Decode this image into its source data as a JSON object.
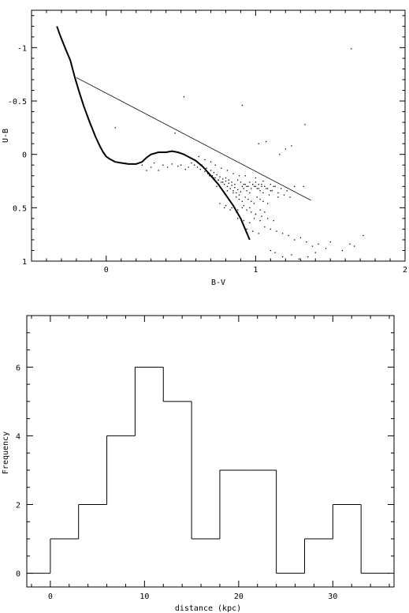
{
  "chart_data": [
    {
      "type": "scatter",
      "title": "",
      "xlabel": "B-V",
      "ylabel": "U-B",
      "xlim": [
        -0.5,
        2.0
      ],
      "ylim": [
        1.0,
        -1.35
      ],
      "y_inverted": true,
      "grid": false,
      "xticks": [
        0,
        1,
        2
      ],
      "xtick_labels": [
        "0",
        "1",
        "2"
      ],
      "yticks": [
        -1,
        -0.5,
        0,
        0.5,
        1
      ],
      "ytick_labels": [
        "-1",
        "-0.5",
        "0",
        "0.5",
        "1"
      ],
      "series": [
        {
          "kind": "line",
          "style": "thick",
          "x": [
            -0.33,
            -0.31,
            -0.27,
            -0.24,
            -0.21,
            -0.18,
            -0.15,
            -0.11,
            -0.07,
            -0.04,
            -0.02,
            0.0,
            0.02,
            0.06,
            0.1,
            0.15,
            0.2,
            0.24,
            0.27,
            0.3,
            0.35,
            0.4,
            0.44,
            0.48,
            0.52,
            0.56,
            0.6,
            0.65,
            0.7,
            0.75,
            0.8,
            0.85,
            0.9,
            0.93,
            0.96
          ],
          "y": [
            -1.2,
            -1.12,
            -0.98,
            -0.88,
            -0.72,
            -0.58,
            -0.45,
            -0.3,
            -0.16,
            -0.07,
            -0.02,
            0.02,
            0.04,
            0.07,
            0.08,
            0.09,
            0.09,
            0.07,
            0.03,
            0.0,
            -0.02,
            -0.02,
            -0.03,
            -0.02,
            0.0,
            0.03,
            0.06,
            0.12,
            0.2,
            0.28,
            0.38,
            0.48,
            0.6,
            0.7,
            0.8
          ]
        },
        {
          "kind": "line",
          "style": "thin",
          "x": [
            -0.2,
            1.37
          ],
          "y": [
            -0.72,
            0.43
          ]
        },
        {
          "kind": "points",
          "x": [
            1.64,
            0.52,
            0.91,
            1.33,
            0.06,
            0.46,
            1.02,
            1.07,
            1.2,
            1.24,
            1.16,
            1.32,
            0.27,
            0.32,
            0.3,
            0.24,
            0.35,
            0.38,
            0.41,
            0.44,
            0.48,
            0.5,
            0.53,
            0.55,
            0.57,
            0.59,
            0.61,
            0.63,
            0.64,
            0.66,
            0.67,
            0.68,
            0.7,
            0.71,
            0.72,
            0.73,
            0.74,
            0.75,
            0.76,
            0.77,
            0.78,
            0.79,
            0.8,
            0.81,
            0.82,
            0.83,
            0.84,
            0.85,
            0.86,
            0.87,
            0.88,
            0.89,
            0.9,
            0.91,
            0.92,
            0.93,
            0.94,
            0.95,
            0.96,
            0.97,
            0.98,
            0.99,
            1.0,
            1.01,
            1.02,
            1.03,
            1.04,
            1.05,
            1.07,
            1.09,
            1.11,
            1.13,
            1.15,
            1.17,
            1.19,
            1.21,
            1.23,
            1.26,
            0.69,
            0.72,
            0.75,
            0.78,
            0.8,
            0.82,
            0.84,
            0.86,
            0.88,
            0.9,
            0.92,
            0.94,
            0.96,
            0.98,
            1.0,
            1.02,
            1.04,
            1.06,
            1.08,
            1.1,
            1.12,
            0.74,
            0.77,
            0.81,
            0.85,
            0.87,
            0.89,
            0.91,
            0.93,
            0.95,
            0.97,
            0.99,
            1.01,
            1.03,
            1.05,
            1.08,
            0.79,
            0.83,
            0.87,
            0.91,
            0.94,
            0.97,
            1.0,
            1.03,
            1.06,
            0.88,
            0.92,
            0.96,
            0.99,
            1.03,
            0.94,
            0.98,
            1.02,
            1.06,
            1.1,
            1.14,
            1.18,
            1.22,
            1.26,
            1.3,
            1.34,
            1.38,
            1.42,
            1.47,
            1.5,
            1.58,
            1.63,
            1.66,
            1.72,
            1.1,
            1.13,
            1.18,
            1.24,
            1.29,
            1.35,
            1.4,
            0.62,
            0.66,
            0.7,
            0.73,
            0.77,
            0.81,
            0.85,
            0.89,
            0.93,
            1.0,
            1.05,
            1.1,
            1.15,
            0.76,
            0.8,
            0.84,
            0.88,
            0.92,
            0.96,
            1.0,
            1.04,
            1.08,
            1.12
          ],
          "y": [
            -0.99,
            -0.54,
            -0.46,
            -0.28,
            -0.25,
            -0.2,
            -0.1,
            -0.12,
            -0.05,
            -0.08,
            0.0,
            0.3,
            0.15,
            0.08,
            0.12,
            0.1,
            0.15,
            0.1,
            0.12,
            0.09,
            0.11,
            0.1,
            0.14,
            0.12,
            0.08,
            0.1,
            0.12,
            0.14,
            0.1,
            0.16,
            0.13,
            0.18,
            0.15,
            0.2,
            0.17,
            0.22,
            0.19,
            0.24,
            0.21,
            0.26,
            0.23,
            0.28,
            0.25,
            0.3,
            0.27,
            0.32,
            0.29,
            0.34,
            0.31,
            0.36,
            0.33,
            0.38,
            0.35,
            0.3,
            0.32,
            0.28,
            0.34,
            0.3,
            0.36,
            0.32,
            0.28,
            0.3,
            0.26,
            0.32,
            0.28,
            0.34,
            0.3,
            0.36,
            0.32,
            0.38,
            0.34,
            0.3,
            0.36,
            0.32,
            0.38,
            0.34,
            0.4,
            0.3,
            0.2,
            0.22,
            0.24,
            0.26,
            0.22,
            0.24,
            0.26,
            0.28,
            0.24,
            0.26,
            0.28,
            0.3,
            0.26,
            0.28,
            0.3,
            0.32,
            0.28,
            0.3,
            0.32,
            0.34,
            0.3,
            0.3,
            0.32,
            0.34,
            0.36,
            0.4,
            0.42,
            0.44,
            0.4,
            0.42,
            0.44,
            0.46,
            0.4,
            0.42,
            0.44,
            0.46,
            0.5,
            0.52,
            0.54,
            0.5,
            0.52,
            0.54,
            0.56,
            0.52,
            0.54,
            0.6,
            0.62,
            0.64,
            0.6,
            0.62,
            0.7,
            0.72,
            0.74,
            0.68,
            0.7,
            0.72,
            0.74,
            0.76,
            0.8,
            0.78,
            0.82,
            0.86,
            0.84,
            0.88,
            0.82,
            0.9,
            0.84,
            0.86,
            0.76,
            0.9,
            0.92,
            0.96,
            0.94,
            0.98,
            0.96,
            0.92,
            0.02,
            0.05,
            0.07,
            0.1,
            0.13,
            0.15,
            0.18,
            0.2,
            0.2,
            0.22,
            0.25,
            0.28,
            0.4,
            0.46,
            0.48,
            0.5,
            0.52,
            0.48,
            0.5,
            0.56,
            0.58,
            0.6,
            0.62
          ]
        }
      ]
    },
    {
      "type": "bar",
      "style": "step-histogram",
      "title": "",
      "xlabel": "distance (kpc)",
      "ylabel": "Frequency",
      "xlim": [
        -2.5,
        36.5
      ],
      "ylim": [
        -0.4,
        7.5
      ],
      "grid": false,
      "xticks": [
        0,
        10,
        20,
        30
      ],
      "xtick_labels": [
        "0",
        "10",
        "20",
        "30"
      ],
      "yticks": [
        0,
        2,
        4,
        6
      ],
      "ytick_labels": [
        "0",
        "2",
        "4",
        "6"
      ],
      "bin_edges": [
        -3,
        0,
        3,
        6,
        9,
        12,
        15,
        18,
        21,
        24,
        27,
        30,
        33,
        36
      ],
      "values": [
        0,
        1,
        2,
        4,
        6,
        5,
        1,
        3,
        3,
        0,
        1,
        2,
        0
      ]
    }
  ]
}
